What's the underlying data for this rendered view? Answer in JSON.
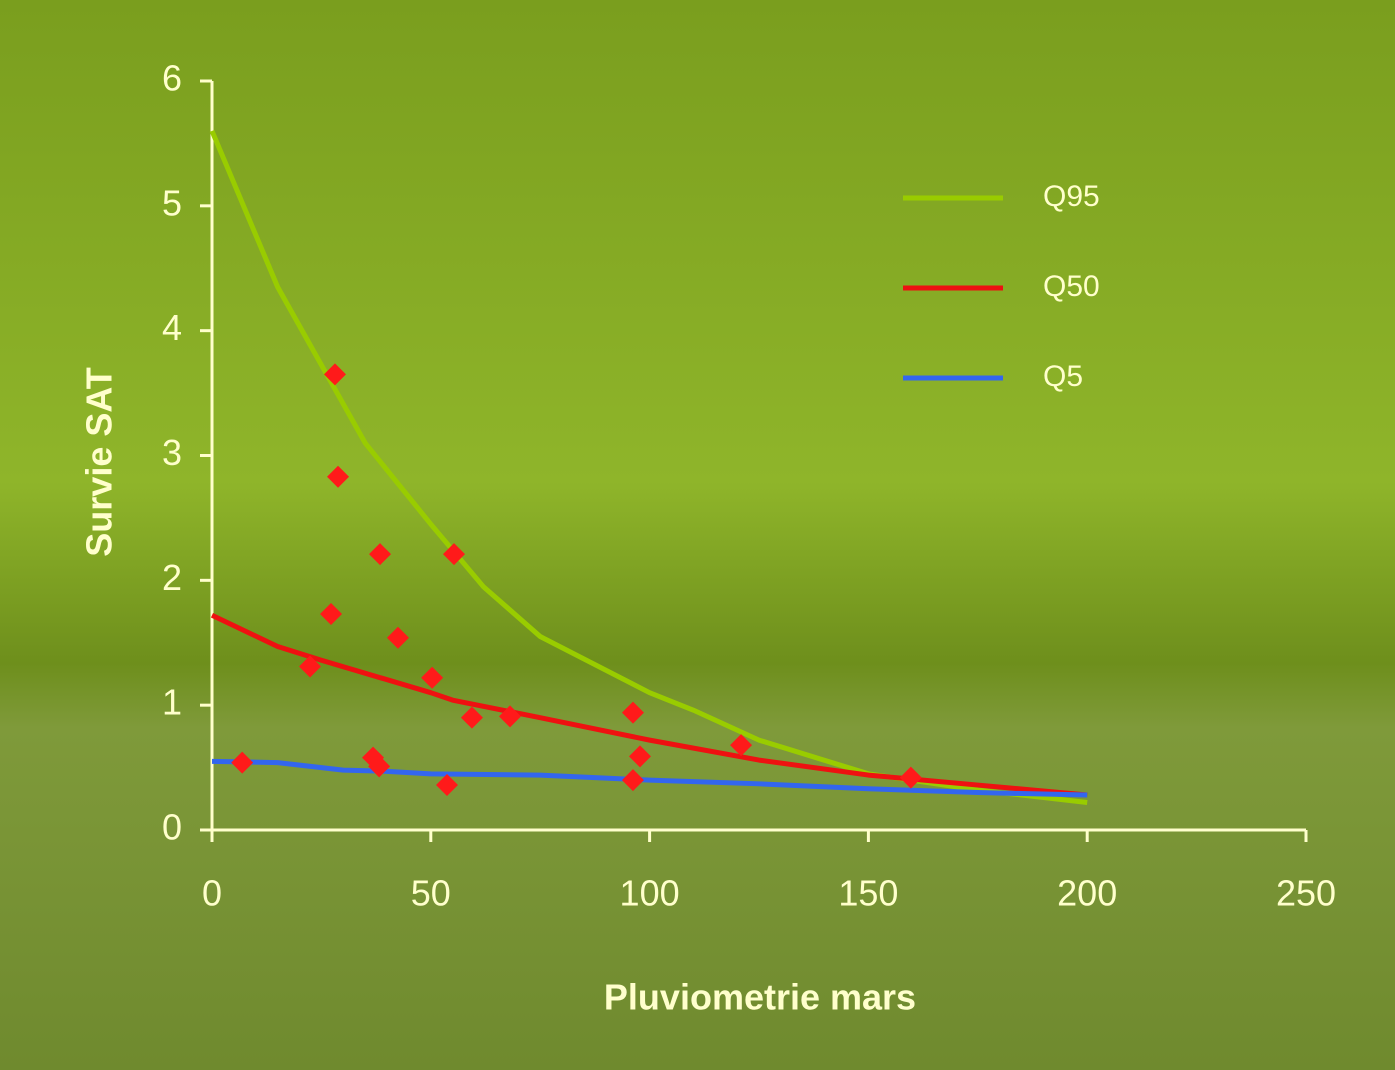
{
  "chart_data": {
    "type": "line",
    "x_label": "Pluviometrie mars",
    "y_label": "Survie SAT",
    "xlim": [
      0,
      250
    ],
    "xticks": [
      0,
      50,
      100,
      150,
      200,
      250
    ],
    "ylim": [
      0,
      6
    ],
    "yticks": [
      0,
      1,
      2,
      3,
      4,
      5,
      6
    ],
    "legend": "upper right",
    "series": [
      {
        "name": "Q95",
        "color": "#99cc00",
        "type": "line",
        "x": [
          0,
          15,
          35,
          50,
          62,
          75,
          100,
          110,
          125,
          150,
          175,
          200
        ],
        "y": [
          5.6,
          4.35,
          3.1,
          2.45,
          1.95,
          1.55,
          1.1,
          0.96,
          0.72,
          0.45,
          0.32,
          0.22
        ]
      },
      {
        "name": "Q50",
        "color": "#ee1111",
        "type": "line",
        "x": [
          0,
          15,
          25,
          50,
          55,
          75,
          100,
          125,
          150,
          175,
          200
        ],
        "y": [
          1.72,
          1.47,
          1.36,
          1.1,
          1.04,
          0.9,
          0.72,
          0.56,
          0.44,
          0.36,
          0.28
        ]
      },
      {
        "name": "Q5",
        "color": "#3366ee",
        "type": "line",
        "x": [
          0,
          15,
          30,
          40,
          50,
          75,
          100,
          125,
          150,
          175,
          200
        ],
        "y": [
          0.55,
          0.54,
          0.48,
          0.47,
          0.45,
          0.44,
          0.4,
          0.37,
          0.33,
          0.3,
          0.28
        ]
      },
      {
        "color": "#ff1a1a",
        "type": "scatter",
        "x": [
          6.9,
          22.4,
          27.2,
          28.1,
          28.8,
          36.8,
          38.2,
          38.4,
          42.5,
          50.3,
          53.7,
          55.3,
          59.4,
          68.1,
          96.2,
          96.2,
          97.8,
          120.9,
          159.7
        ],
        "y": [
          0.54,
          1.31,
          1.73,
          3.65,
          2.83,
          0.58,
          0.51,
          2.21,
          1.54,
          1.22,
          0.36,
          2.21,
          0.9,
          0.91,
          0.94,
          0.4,
          0.59,
          0.68,
          0.42
        ]
      }
    ]
  }
}
